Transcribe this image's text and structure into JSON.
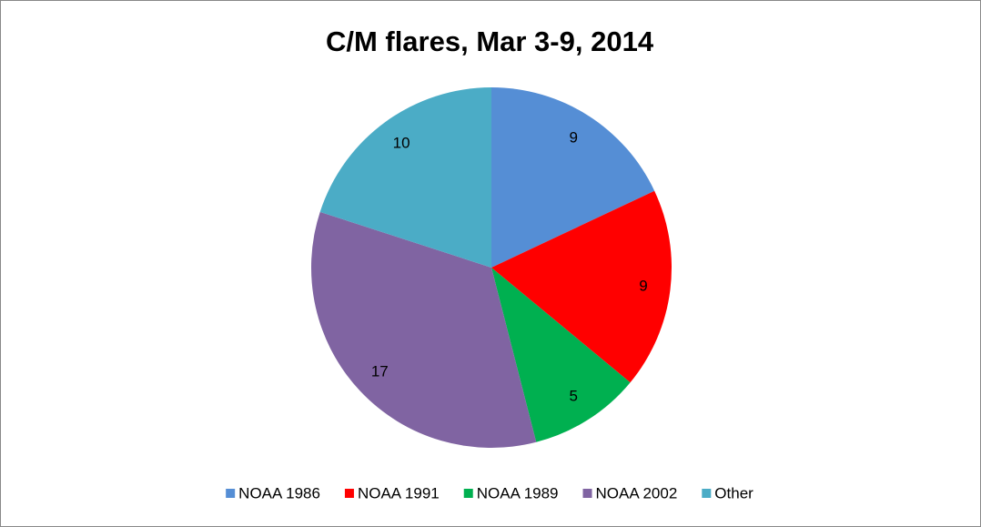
{
  "chart_data": {
    "type": "pie",
    "title": "C/M flares, Mar 3-9, 2014",
    "categories": [
      "NOAA 1986",
      "NOAA 1991",
      "NOAA 1989",
      "NOAA 2002",
      "Other"
    ],
    "values": [
      9,
      9,
      5,
      17,
      10
    ],
    "colors": [
      "#558ed5",
      "#ff0000",
      "#00b050",
      "#8064a2",
      "#4bacc6"
    ],
    "legend": "bottom"
  }
}
